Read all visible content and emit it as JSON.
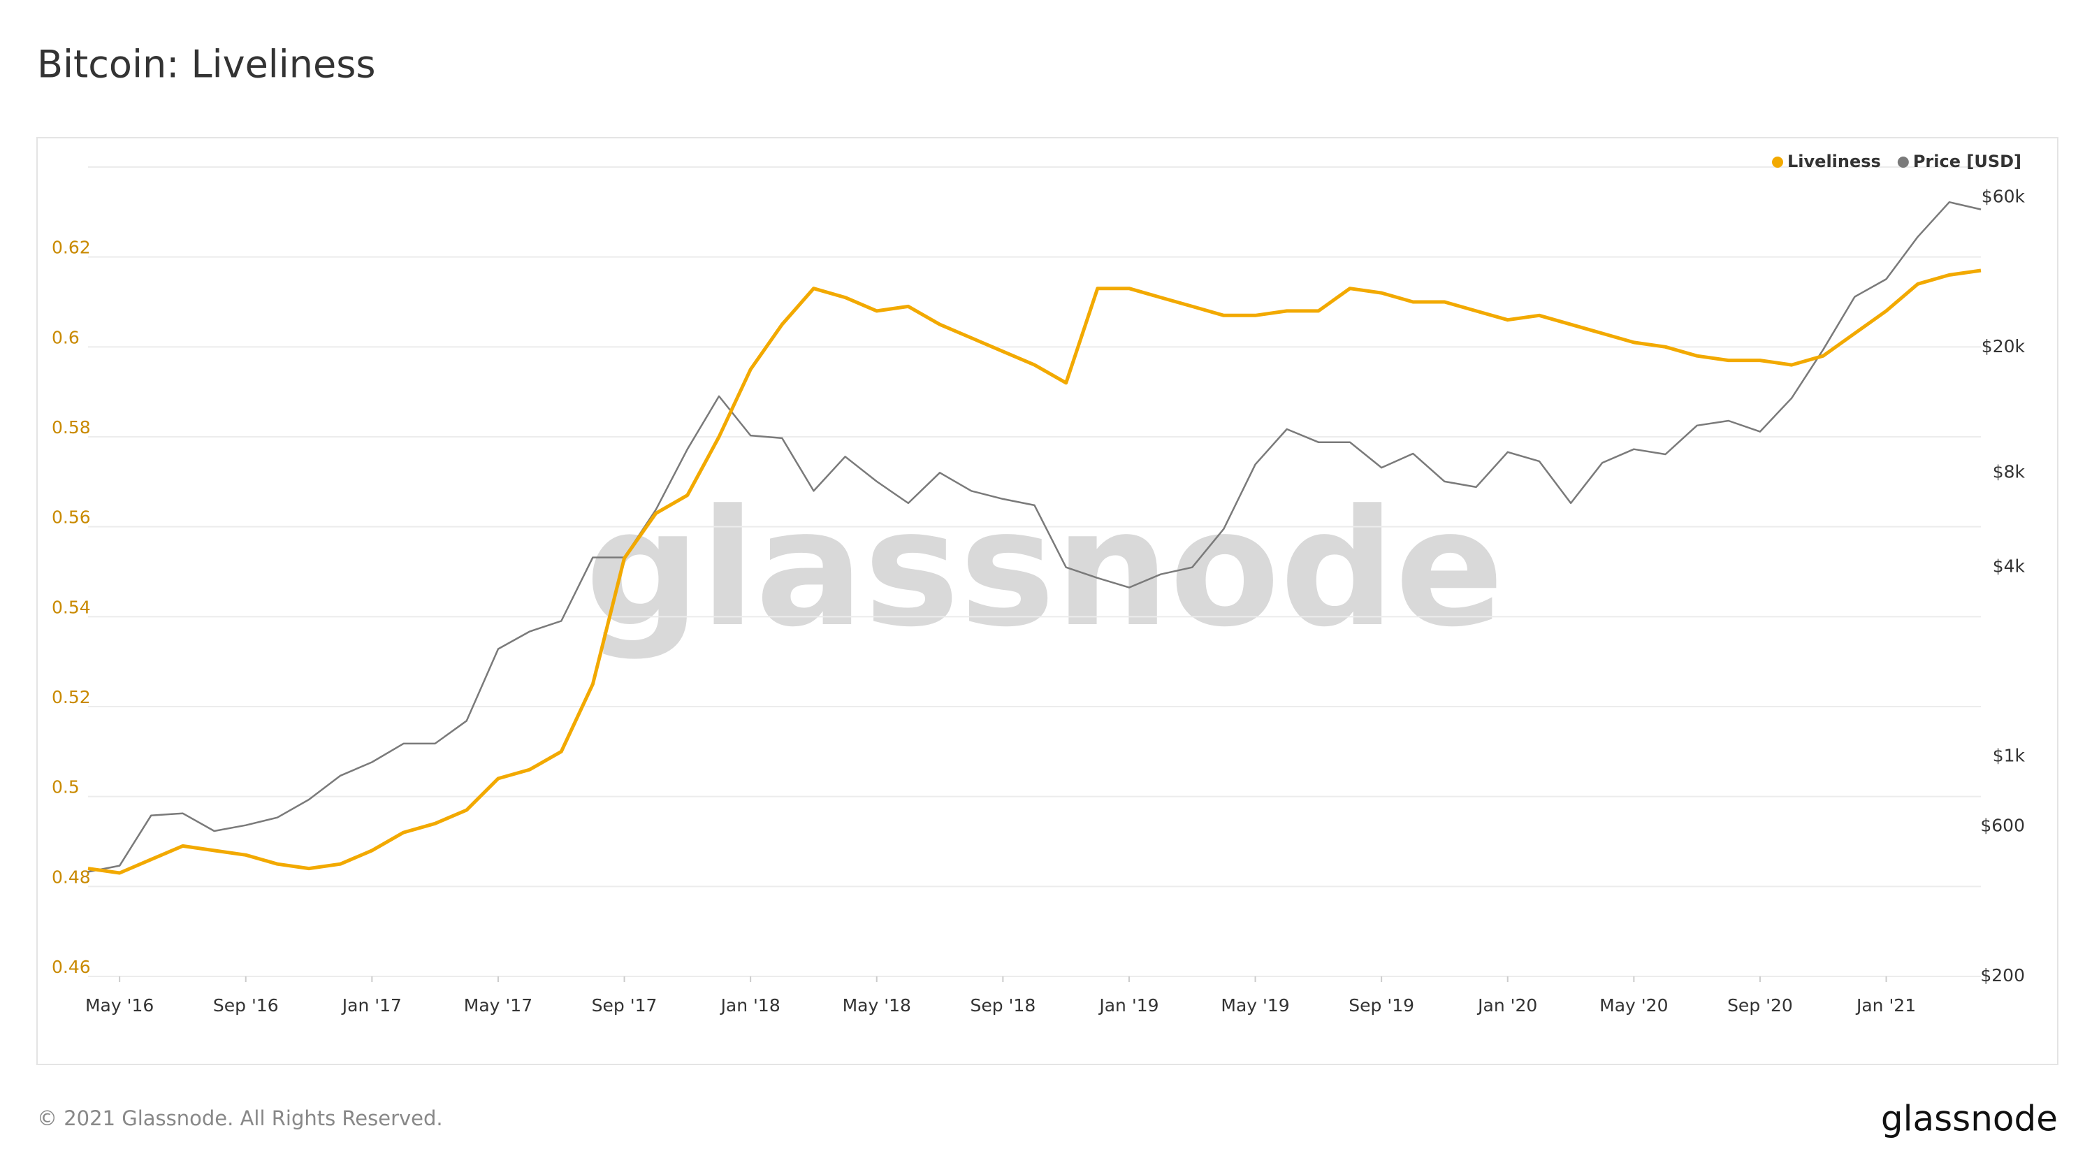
{
  "chart_data": {
    "type": "line",
    "title": "Bitcoin: Liveliness",
    "watermark": "glassnode",
    "footer": "© 2021 Glassnode. All Rights Reserved.",
    "logo": "glassnode",
    "legend": "top-right",
    "grid": true,
    "x": [
      "2016-04",
      "2016-05",
      "2016-06",
      "2016-07",
      "2016-08",
      "2016-09",
      "2016-10",
      "2016-11",
      "2016-12",
      "2017-01",
      "2017-02",
      "2017-03",
      "2017-04",
      "2017-05",
      "2017-06",
      "2017-07",
      "2017-08",
      "2017-09",
      "2017-10",
      "2017-11",
      "2017-12",
      "2018-01",
      "2018-02",
      "2018-03",
      "2018-04",
      "2018-05",
      "2018-06",
      "2018-07",
      "2018-08",
      "2018-09",
      "2018-10",
      "2018-11",
      "2018-12",
      "2019-01",
      "2019-02",
      "2019-03",
      "2019-04",
      "2019-05",
      "2019-06",
      "2019-07",
      "2019-08",
      "2019-09",
      "2019-10",
      "2019-11",
      "2019-12",
      "2020-01",
      "2020-02",
      "2020-03",
      "2020-04",
      "2020-05",
      "2020-06",
      "2020-07",
      "2020-08",
      "2020-09",
      "2020-10",
      "2020-11",
      "2020-12",
      "2021-01",
      "2021-02",
      "2021-03",
      "2021-04"
    ],
    "xlim": [
      "2016-04",
      "2021-04"
    ],
    "xticks": [
      {
        "value": "2016-05",
        "label": "May '16"
      },
      {
        "value": "2016-09",
        "label": "Sep '16"
      },
      {
        "value": "2017-01",
        "label": "Jan '17"
      },
      {
        "value": "2017-05",
        "label": "May '17"
      },
      {
        "value": "2017-09",
        "label": "Sep '17"
      },
      {
        "value": "2018-01",
        "label": "Jan '18"
      },
      {
        "value": "2018-05",
        "label": "May '18"
      },
      {
        "value": "2018-09",
        "label": "Sep '18"
      },
      {
        "value": "2019-01",
        "label": "Jan '19"
      },
      {
        "value": "2019-05",
        "label": "May '19"
      },
      {
        "value": "2019-09",
        "label": "Sep '19"
      },
      {
        "value": "2020-01",
        "label": "Jan '20"
      },
      {
        "value": "2020-05",
        "label": "May '20"
      },
      {
        "value": "2020-09",
        "label": "Sep '20"
      },
      {
        "value": "2021-01",
        "label": "Jan '21"
      }
    ],
    "ylim": [
      0.46,
      0.64
    ],
    "yticks": [
      0.46,
      0.48,
      {
        "value": 0.5,
        "label": "0.5"
      },
      0.52,
      0.54,
      0.56,
      0.58,
      {
        "value": 0.6,
        "label": "0.6"
      },
      0.62
    ],
    "y2lim": [
      200,
      75000
    ],
    "y2scale": "log",
    "y2ticks": [
      {
        "value": 200,
        "label": "$200"
      },
      {
        "value": 600,
        "label": "$600"
      },
      {
        "value": 1000,
        "label": "$1k"
      },
      {
        "value": 4000,
        "label": "$4k"
      },
      {
        "value": 8000,
        "label": "$8k"
      },
      {
        "value": 20000,
        "label": "$20k"
      },
      {
        "value": 60000,
        "label": "$60k"
      }
    ],
    "series": [
      {
        "name": "Liveliness",
        "color": "#f2a900",
        "values": [
          0.484,
          0.483,
          0.486,
          0.489,
          0.488,
          0.487,
          0.485,
          0.484,
          0.485,
          0.488,
          0.492,
          0.494,
          0.497,
          0.504,
          0.506,
          0.51,
          0.525,
          0.553,
          0.563,
          0.567,
          0.58,
          0.595,
          0.605,
          0.613,
          0.611,
          0.608,
          0.609,
          0.605,
          0.602,
          0.599,
          0.596,
          0.592,
          0.613,
          0.613,
          0.611,
          0.609,
          0.607,
          0.607,
          0.608,
          0.608,
          0.613,
          0.612,
          0.61,
          0.61,
          0.608,
          0.606,
          0.607,
          0.605,
          0.603,
          0.601,
          0.6,
          0.598,
          0.597,
          0.597,
          0.596,
          0.598,
          0.603,
          0.608,
          0.614,
          0.616,
          0.617
        ]
      },
      {
        "name": "Price [USD]",
        "color": "#7a7a7a",
        "axis": "y2",
        "values": [
          430,
          450,
          650,
          660,
          580,
          605,
          640,
          730,
          870,
          960,
          1100,
          1100,
          1300,
          2200,
          2500,
          2700,
          4300,
          4300,
          6100,
          9500,
          14000,
          10500,
          10300,
          7000,
          9000,
          7500,
          6400,
          8000,
          7000,
          6600,
          6300,
          4000,
          3700,
          3450,
          3800,
          4000,
          5300,
          8500,
          11000,
          10000,
          10000,
          8300,
          9200,
          7500,
          7200,
          9300,
          8700,
          6400,
          8600,
          9500,
          9150,
          11300,
          11700,
          10800,
          13800,
          19700,
          29000,
          33000,
          45000,
          58000,
          55000
        ]
      }
    ]
  }
}
